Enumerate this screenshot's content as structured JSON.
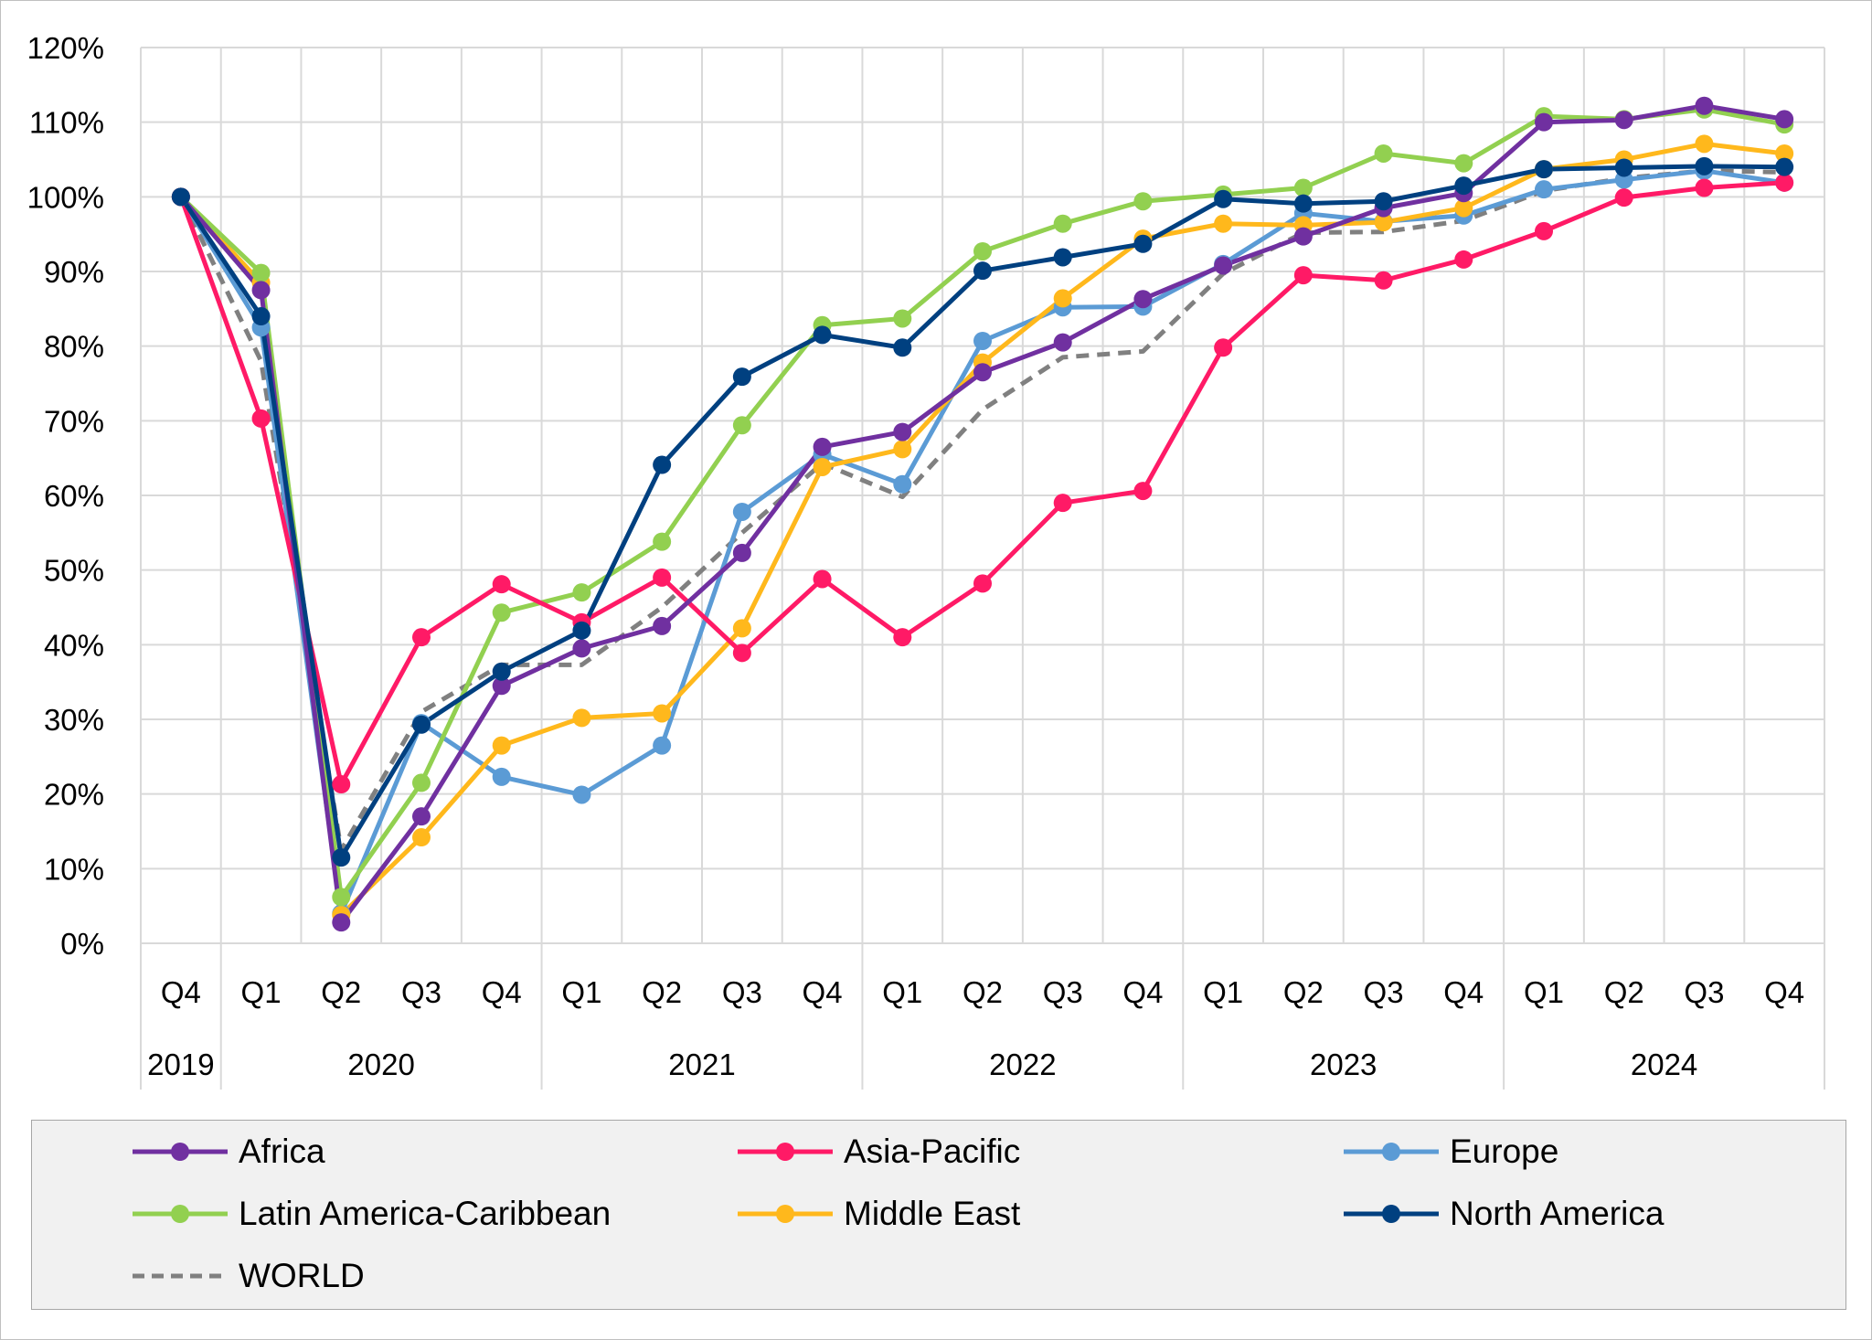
{
  "chart_data": {
    "type": "line",
    "x_quarters": [
      "Q4",
      "Q1",
      "Q2",
      "Q3",
      "Q4",
      "Q1",
      "Q2",
      "Q3",
      "Q4",
      "Q1",
      "Q2",
      "Q3",
      "Q4",
      "Q1",
      "Q2",
      "Q3",
      "Q4",
      "Q1",
      "Q2",
      "Q3",
      "Q4"
    ],
    "x_years": [
      {
        "label": "2019",
        "start": 0,
        "end": 0
      },
      {
        "label": "2020",
        "start": 1,
        "end": 4
      },
      {
        "label": "2021",
        "start": 5,
        "end": 8
      },
      {
        "label": "2022",
        "start": 9,
        "end": 12
      },
      {
        "label": "2023",
        "start": 13,
        "end": 16
      },
      {
        "label": "2024",
        "start": 17,
        "end": 20
      }
    ],
    "y_ticks": [
      "0%",
      "10%",
      "20%",
      "30%",
      "40%",
      "50%",
      "60%",
      "70%",
      "80%",
      "90%",
      "100%",
      "110%",
      "120%"
    ],
    "ylim": [
      0,
      120
    ],
    "grid": true,
    "legend_position": "bottom",
    "series": [
      {
        "name": "Africa",
        "color": "#7030a0",
        "style": "solid-marker",
        "values": [
          100,
          87.5,
          2.8,
          17,
          34.5,
          39.5,
          42.5,
          52.3,
          66.5,
          68.5,
          76.5,
          80.5,
          86.3,
          90.8,
          94.7,
          98.5,
          100.5,
          110,
          110.3,
          112.2,
          110.4
        ]
      },
      {
        "name": "Asia-Pacific",
        "color": "#ff1a66",
        "style": "solid-marker",
        "values": [
          100,
          70.3,
          21.3,
          41,
          48.1,
          43,
          49,
          38.9,
          48.8,
          41,
          48.2,
          59,
          60.6,
          79.8,
          89.5,
          88.8,
          91.6,
          95.4,
          99.9,
          101.2,
          101.9
        ]
      },
      {
        "name": "Europe",
        "color": "#5b9bd5",
        "style": "solid-marker",
        "values": [
          100,
          82.5,
          4,
          29.5,
          22.3,
          19.9,
          26.5,
          57.8,
          65.5,
          61.5,
          80.7,
          85.2,
          85.3,
          91,
          97.8,
          96.7,
          97.5,
          101,
          102.3,
          103.5,
          101.9
        ]
      },
      {
        "name": "Latin America-Caribbean",
        "color": "#92d050",
        "style": "solid-marker",
        "values": [
          100,
          89.8,
          6.2,
          21.5,
          44.3,
          47,
          53.8,
          69.4,
          82.8,
          83.7,
          92.7,
          96.4,
          99.4,
          100.3,
          101.2,
          105.8,
          104.5,
          110.8,
          110.4,
          111.7,
          109.7
        ]
      },
      {
        "name": "Middle East",
        "color": "#ffb81c",
        "style": "solid-marker",
        "values": [
          100,
          88.5,
          3.8,
          14.2,
          26.5,
          30.2,
          30.8,
          42.2,
          63.8,
          66.2,
          77.8,
          86.4,
          94.4,
          96.4,
          96.2,
          96.6,
          98.5,
          103.7,
          105,
          107.1,
          105.8
        ]
      },
      {
        "name": "North America",
        "color": "#004080",
        "style": "solid-marker",
        "values": [
          100,
          84,
          11.5,
          29.3,
          36.4,
          41.9,
          64.1,
          75.9,
          81.5,
          79.8,
          90.1,
          91.9,
          93.7,
          99.7,
          99.1,
          99.4,
          101.5,
          103.7,
          103.9,
          104.1,
          104
        ]
      },
      {
        "name": "WORLD",
        "color": "#808080",
        "style": "dashed",
        "values": [
          100,
          78,
          12.5,
          31,
          37.3,
          37.3,
          45,
          55,
          64.3,
          59.8,
          71.5,
          78.5,
          79.3,
          89.7,
          95.2,
          95.3,
          96.8,
          100.8,
          102.5,
          103.5,
          103.3
        ]
      }
    ]
  }
}
